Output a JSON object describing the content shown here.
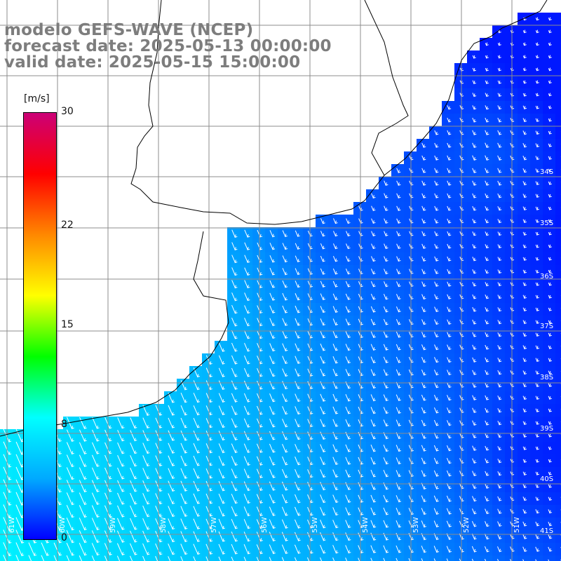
{
  "title": {
    "line1": "modelo GEFS-WAVE (NCEP)",
    "line2": "forecast date: 2025-05-13 00:00:00",
    "line3": "valid date: 2025-05-15 15:00:00"
  },
  "colorbar": {
    "units": "[m/s]",
    "ticks": [
      {
        "value": 30,
        "label": "30"
      },
      {
        "value": 22,
        "label": "22"
      },
      {
        "value": 15,
        "label": "15"
      },
      {
        "value": 8,
        "label": "8"
      },
      {
        "value": 0,
        "label": "0"
      }
    ],
    "stops": [
      "#0000ff",
      "#00aaff",
      "#00ffff",
      "#00ff00",
      "#ffff00",
      "#ff8800",
      "#ff0000",
      "#cc0077"
    ]
  },
  "map": {
    "lat_labels": [
      "34S",
      "35S",
      "36S",
      "37S",
      "38S",
      "39S",
      "40S",
      "41S"
    ],
    "lon_labels": [
      "61W",
      "60W",
      "59W",
      "58W",
      "57W",
      "56W",
      "55W",
      "54W",
      "53W",
      "52W",
      "51W"
    ],
    "land_color": "#ffffff",
    "grid_color": "#8c8c8c",
    "wind_field": {
      "dominant_direction": "toward southwest",
      "speed_range_mps": [
        1,
        9
      ],
      "high_speed_region": "southwest coastal waters",
      "low_speed_region": "eastern offshore"
    }
  }
}
